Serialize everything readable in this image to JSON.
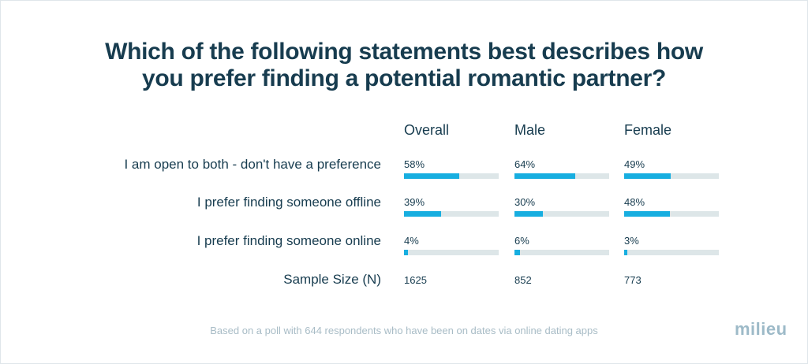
{
  "title_line1": "Which of the following statements best describes how",
  "title_line2": "you prefer finding a potential romantic partner?",
  "columns": [
    "Overall",
    "Male",
    "Female"
  ],
  "sample_label": "Sample Size (N)",
  "sample_sizes": [
    "1625",
    "852",
    "773"
  ],
  "footnote": "Based on a poll with 644 respondents who have been on dates via online dating apps",
  "logo": "milieu",
  "colors": {
    "bar": "#17aee0",
    "track": "#dde6e8",
    "text": "#173c4f"
  },
  "chart_data": {
    "type": "bar",
    "orientation": "horizontal",
    "categories": [
      "I am open to both - don't have a preference",
      "I prefer finding someone offline",
      "I prefer finding someone online"
    ],
    "series": [
      {
        "name": "Overall",
        "values": [
          58,
          39,
          4
        ],
        "labels": [
          "58%",
          "39%",
          "4%"
        ]
      },
      {
        "name": "Male",
        "values": [
          64,
          30,
          6
        ],
        "labels": [
          "64%",
          "30%",
          "6%"
        ]
      },
      {
        "name": "Female",
        "values": [
          49,
          48,
          3
        ],
        "labels": [
          "49%",
          "48%",
          "3%"
        ]
      }
    ],
    "xlim": [
      0,
      100
    ],
    "unit": "%"
  }
}
